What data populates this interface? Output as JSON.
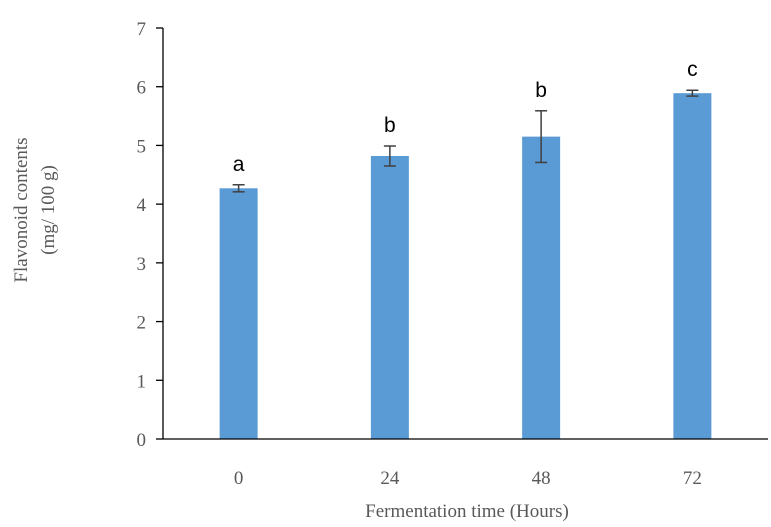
{
  "chart_data": {
    "type": "bar",
    "categories": [
      "0",
      "24",
      "48",
      "72"
    ],
    "values": [
      4.27,
      4.82,
      5.15,
      5.89
    ],
    "errors": [
      0.06,
      0.17,
      0.44,
      0.05
    ],
    "significance_labels": [
      "a",
      "b",
      "b",
      "c"
    ],
    "xlabel": "Fermentation time (Hours)",
    "ylabel_lines": [
      "Flavonoid contents",
      "(mg/ 100 g)"
    ],
    "ylim": [
      0,
      7
    ],
    "yticks": [
      "0",
      "1",
      "2",
      "3",
      "4",
      "5",
      "6",
      "7"
    ],
    "grid": false,
    "bar_color": "#5b9bd5",
    "error_bar_color": "#404040",
    "text_color": "#595959"
  }
}
